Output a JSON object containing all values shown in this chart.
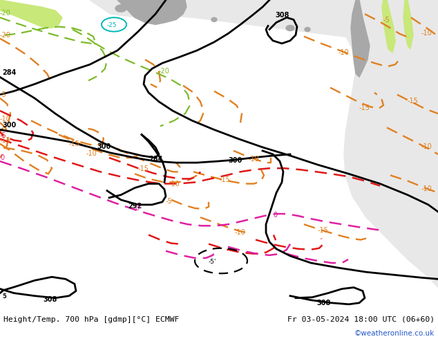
{
  "title_left": "Height/Temp. 700 hPa [gdmp][°C] ECMWF",
  "title_right": "Fr 03-05-2024 18:00 UTC (06+60)",
  "watermark": "©weatheronline.co.uk",
  "green": "#c8e87a",
  "gray_sea": "#c8c8c8",
  "gray_land": "#a8a8a8",
  "white_sea": "#e8e8e8",
  "fig_width": 6.34,
  "fig_height": 4.9,
  "dpi": 100
}
